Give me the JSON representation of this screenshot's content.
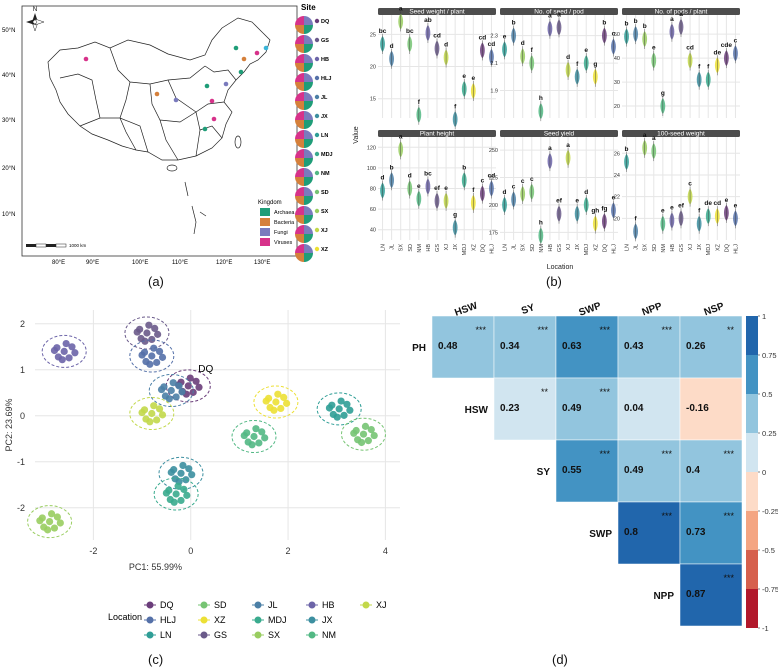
{
  "panel_labels": [
    "(a)",
    "(b)",
    "(c)",
    "(d)"
  ],
  "colors": {
    "DQ": "#6a3d7a",
    "GS": "#6a5a8a",
    "HB": "#6c64a8",
    "HLJ": "#5470a8",
    "JL": "#4b7fa6",
    "JX": "#3c8fa0",
    "LN": "#2f9e96",
    "MDJ": "#3aab8e",
    "NM": "#52b884",
    "SD": "#76c473",
    "SX": "#99cd60",
    "XJ": "#c2d84a",
    "XZ": "#ece035",
    "Archaea": "#1f9d78",
    "Bacteria": "#d5803b",
    "Fungi": "#7a7bbd",
    "Viruses": "#d7328a"
  },
  "map": {
    "compass": "N",
    "lat_labels": [
      "50°N",
      "40°N",
      "30°N",
      "20°N",
      "10°N"
    ],
    "lon_labels": [
      "80°E",
      "90°E",
      "100°E",
      "110°E",
      "120°E",
      "130°E"
    ],
    "scale_label": "1000 km",
    "site_legend_title": "Site",
    "sites": [
      "DQ",
      "GS",
      "HB",
      "HLJ",
      "JL",
      "JX",
      "LN",
      "MDJ",
      "NM",
      "SD",
      "SX",
      "XJ",
      "XZ"
    ],
    "kingdom_title": "Kingdom",
    "kingdoms": [
      "Archaea",
      "Bacteria",
      "Fungi",
      "Viruses"
    ]
  },
  "chart_data": [
    {
      "type": "violin",
      "panel": "b",
      "xlabel": "Location",
      "ylabel": "Value",
      "categories": [
        "LN",
        "JL",
        "SX",
        "SD",
        "NM",
        "HB",
        "GS",
        "XJ",
        "JX",
        "MDJ",
        "XZ",
        "DQ",
        "HLJ"
      ],
      "facets": [
        {
          "title": "Seed weight / plant",
          "yticks": [
            "15",
            "20",
            "25"
          ],
          "ylim": [
            12,
            28
          ],
          "values": [
            23.5,
            21.2,
            27,
            23.5,
            12.5,
            25.2,
            22.8,
            21.4,
            11.8,
            16.5,
            16.2,
            22.5,
            21.5
          ],
          "letters": [
            "bc",
            "d",
            "a",
            "bc",
            "f",
            "ab",
            "cd",
            "d",
            "f",
            "e",
            "e",
            "cd",
            "cd"
          ]
        },
        {
          "title": "No. of seed / pod",
          "yticks": [
            "1.9",
            "2.1",
            "2.3"
          ],
          "ylim": [
            1.7,
            2.45
          ],
          "values": [
            2.2,
            2.3,
            2.15,
            2.1,
            1.75,
            2.35,
            2.36,
            2.05,
            2.0,
            2.1,
            2.0,
            2.3,
            2.22
          ],
          "letters": [
            "e",
            "b",
            "d",
            "f",
            "h",
            "a",
            "a",
            "d",
            "f",
            "e",
            "g",
            "b",
            "c"
          ]
        },
        {
          "title": "No. of pods / plant",
          "yticks": [
            "20",
            "30",
            "40",
            "50"
          ],
          "ylim": [
            15,
            58
          ],
          "values": [
            49,
            50,
            48,
            39,
            20,
            51,
            53,
            39,
            31,
            31,
            37,
            40,
            42
          ],
          "letters": [
            "b",
            "b",
            "b",
            "e",
            "g",
            "a",
            "a",
            "cd",
            "f",
            "f",
            "de",
            "cde",
            "c"
          ]
        },
        {
          "title": "Plant height",
          "yticks": [
            "40",
            "60",
            "80",
            "100",
            "120"
          ],
          "ylim": [
            30,
            130
          ],
          "values": [
            78,
            88,
            118,
            80,
            70,
            82,
            68,
            68,
            42,
            88,
            66,
            75,
            80
          ],
          "letters": [
            "d",
            "b",
            "a",
            "d",
            "e",
            "bc",
            "ef",
            "e",
            "g",
            "b",
            "f",
            "c",
            "cd"
          ]
        },
        {
          "title": "Seed yield",
          "yticks": [
            "175",
            "200",
            "225",
            "250"
          ],
          "ylim": [
            168,
            262
          ],
          "values": [
            200,
            205,
            210,
            212,
            172,
            240,
            192,
            243,
            192,
            200,
            183,
            185,
            195
          ],
          "letters": [
            "d",
            "c",
            "c",
            "c",
            "h",
            "a",
            "ef",
            "a",
            "e",
            "d",
            "gh",
            "fg",
            "e"
          ]
        },
        {
          "title": "100-seed weight",
          "yticks": [
            "20",
            "22",
            "24",
            "26"
          ],
          "ylim": [
            18,
            27.5
          ],
          "values": [
            25.2,
            18.8,
            26.5,
            26.2,
            19.5,
            19.8,
            20.0,
            22.0,
            19.5,
            20.2,
            20.2,
            20.5,
            20.0
          ],
          "letters": [
            "b",
            "f",
            "a",
            "a",
            "e",
            "e",
            "ef",
            "c",
            "f",
            "de",
            "cd",
            "e",
            "e"
          ]
        }
      ]
    },
    {
      "type": "scatter",
      "panel": "c",
      "xlabel": "PC1: 55.99%",
      "ylabel": "PC2: 23.69%",
      "xlim": [
        -3.2,
        4.3
      ],
      "ylim": [
        -2.7,
        2.3
      ],
      "xticks": [
        -2,
        0,
        2,
        4
      ],
      "yticks": [
        -2,
        -1,
        0,
        1,
        2
      ],
      "annotation": "DQ",
      "legend_title": "Location",
      "legend_items": [
        "DQ",
        "HLJ",
        "LN",
        "SD",
        "XZ",
        "GS",
        "JL",
        "MDJ",
        "SX",
        "HB",
        "JX",
        "NM",
        "XJ"
      ],
      "groups": [
        {
          "name": "DQ",
          "center": [
            -0.05,
            0.65
          ]
        },
        {
          "name": "GS",
          "center": [
            -0.9,
            1.8
          ]
        },
        {
          "name": "HB",
          "center": [
            -2.6,
            1.4
          ]
        },
        {
          "name": "HLJ",
          "center": [
            -0.8,
            1.3
          ]
        },
        {
          "name": "JL",
          "center": [
            -0.4,
            0.55
          ]
        },
        {
          "name": "JX",
          "center": [
            -0.2,
            -1.25
          ]
        },
        {
          "name": "LN",
          "center": [
            3.05,
            0.15
          ]
        },
        {
          "name": "MDJ",
          "center": [
            -0.3,
            -1.7
          ]
        },
        {
          "name": "NM",
          "center": [
            1.3,
            -0.45
          ]
        },
        {
          "name": "SD",
          "center": [
            3.55,
            -0.4
          ]
        },
        {
          "name": "SX",
          "center": [
            -2.9,
            -2.3
          ]
        },
        {
          "name": "XJ",
          "center": [
            -0.8,
            0.05
          ]
        },
        {
          "name": "XZ",
          "center": [
            1.75,
            0.3
          ]
        }
      ]
    },
    {
      "type": "heatmap",
      "panel": "d",
      "columns": [
        "HSW",
        "SY",
        "SWP",
        "NPP",
        "NSP"
      ],
      "rows": [
        "PH",
        "HSW",
        "SY",
        "SWP",
        "NPP"
      ],
      "cells": [
        {
          "row": "PH",
          "col": "HSW",
          "r": 0.48,
          "sig": "***"
        },
        {
          "row": "PH",
          "col": "SY",
          "r": 0.34,
          "sig": "***"
        },
        {
          "row": "PH",
          "col": "SWP",
          "r": 0.63,
          "sig": "***"
        },
        {
          "row": "PH",
          "col": "NPP",
          "r": 0.43,
          "sig": "***"
        },
        {
          "row": "PH",
          "col": "NSP",
          "r": 0.26,
          "sig": "**"
        },
        {
          "row": "HSW",
          "col": "SY",
          "r": 0.23,
          "sig": "**"
        },
        {
          "row": "HSW",
          "col": "SWP",
          "r": 0.49,
          "sig": "***"
        },
        {
          "row": "HSW",
          "col": "NPP",
          "r": 0.04,
          "sig": ""
        },
        {
          "row": "HSW",
          "col": "NSP",
          "r": -0.16,
          "sig": ""
        },
        {
          "row": "SY",
          "col": "SWP",
          "r": 0.55,
          "sig": "***"
        },
        {
          "row": "SY",
          "col": "NPP",
          "r": 0.49,
          "sig": "***"
        },
        {
          "row": "SY",
          "col": "NSP",
          "r": 0.4,
          "sig": "***"
        },
        {
          "row": "SWP",
          "col": "NPP",
          "r": 0.8,
          "sig": "***"
        },
        {
          "row": "SWP",
          "col": "NSP",
          "r": 0.73,
          "sig": "***"
        },
        {
          "row": "NPP",
          "col": "NSP",
          "r": 0.87,
          "sig": "***"
        }
      ],
      "colorbar_ticks": [
        "1",
        "0.75",
        "0.5",
        "0.25",
        "0",
        "-0.25",
        "-0.5",
        "-0.75",
        "-1"
      ]
    }
  ]
}
